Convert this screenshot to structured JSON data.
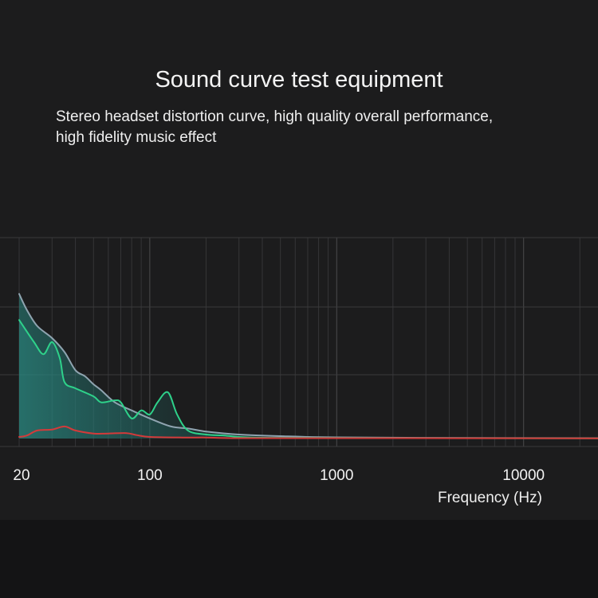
{
  "header": {
    "title": "Sound curve test equipment",
    "subtitle_line1": "Stereo headset distortion curve, high quality overall performance,",
    "subtitle_line2": "high fidelity music effect"
  },
  "chart_data": {
    "type": "line",
    "title": "",
    "xlabel": "Frequency (Hz)",
    "ylabel": "",
    "x_scale": "log",
    "xlim": [
      20,
      25000
    ],
    "ylim": [
      0,
      100
    ],
    "x_ticks": [
      20,
      100,
      1000,
      10000
    ],
    "x_tick_labels": [
      "20",
      "100",
      "1000",
      "10000"
    ],
    "grid": true,
    "legend": "none",
    "series": [
      {
        "color": "#8fa4b0",
        "points": [
          [
            20,
            72
          ],
          [
            22,
            64
          ],
          [
            25,
            56
          ],
          [
            30,
            50
          ],
          [
            35,
            43
          ],
          [
            40,
            34
          ],
          [
            45,
            31
          ],
          [
            50,
            27
          ],
          [
            55,
            24
          ],
          [
            65,
            18
          ],
          [
            80,
            14
          ],
          [
            100,
            10
          ],
          [
            130,
            6
          ],
          [
            160,
            5
          ],
          [
            200,
            3.5
          ],
          [
            300,
            2
          ],
          [
            500,
            1.2
          ],
          [
            1000,
            0.6
          ],
          [
            5000,
            0.3
          ],
          [
            25000,
            0.2
          ]
        ]
      },
      {
        "color": "#2ed18a",
        "points": [
          [
            20,
            59
          ],
          [
            24,
            48
          ],
          [
            27,
            42
          ],
          [
            30,
            48
          ],
          [
            33,
            40
          ],
          [
            35,
            28
          ],
          [
            40,
            25
          ],
          [
            50,
            21
          ],
          [
            55,
            18
          ],
          [
            65,
            19
          ],
          [
            70,
            18
          ],
          [
            80,
            10
          ],
          [
            90,
            14
          ],
          [
            100,
            12
          ],
          [
            110,
            18
          ],
          [
            125,
            23
          ],
          [
            140,
            12
          ],
          [
            160,
            4
          ],
          [
            200,
            2
          ],
          [
            250,
            1.5
          ],
          [
            300,
            0.8
          ],
          [
            400,
            0.4
          ],
          [
            1000,
            0.3
          ],
          [
            25000,
            0.1
          ]
        ]
      },
      {
        "color": "#d43a3a",
        "points": [
          [
            20,
            0.8
          ],
          [
            22,
            1.5
          ],
          [
            25,
            4
          ],
          [
            30,
            4.5
          ],
          [
            35,
            6
          ],
          [
            40,
            4
          ],
          [
            50,
            2.5
          ],
          [
            60,
            2.5
          ],
          [
            75,
            2.7
          ],
          [
            85,
            1.7
          ],
          [
            100,
            0.8
          ],
          [
            150,
            0.5
          ],
          [
            200,
            0.5
          ],
          [
            300,
            0.2
          ],
          [
            1000,
            0.2
          ],
          [
            25000,
            0.1
          ]
        ]
      }
    ]
  }
}
